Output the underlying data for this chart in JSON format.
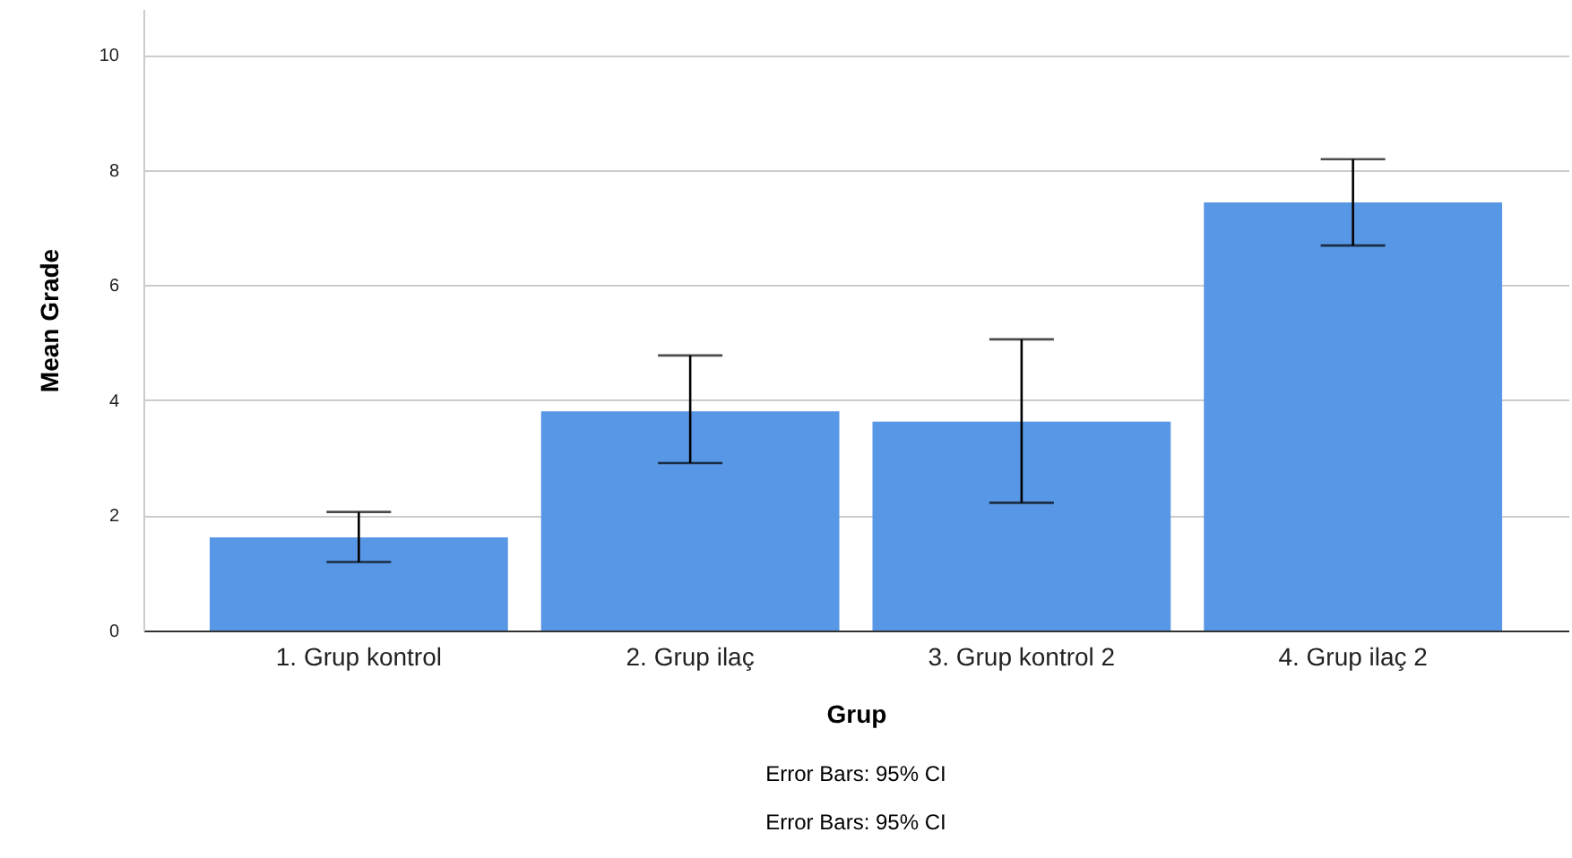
{
  "chart_data": {
    "type": "bar",
    "xlabel": "Grup",
    "ylabel": "Mean Grade",
    "categories": [
      "1. Grup kontrol",
      "2. Grup ilaç",
      "3. Grup kontrol 2",
      "4. Grup ilaç 2"
    ],
    "values": [
      1.62,
      3.81,
      3.63,
      7.44
    ],
    "errors": [
      [
        1.19,
        2.06
      ],
      [
        2.91,
        4.78
      ],
      [
        2.22,
        5.06
      ],
      [
        6.69,
        8.19
      ]
    ],
    "color": "#5897e5",
    "ylim": [
      0,
      10.8
    ],
    "yticks": [
      0,
      2,
      4,
      6,
      8,
      10
    ],
    "grid": "y",
    "annotations": [
      "Error Bars: 95% CI",
      "Error Bars: 95% CI"
    ]
  }
}
